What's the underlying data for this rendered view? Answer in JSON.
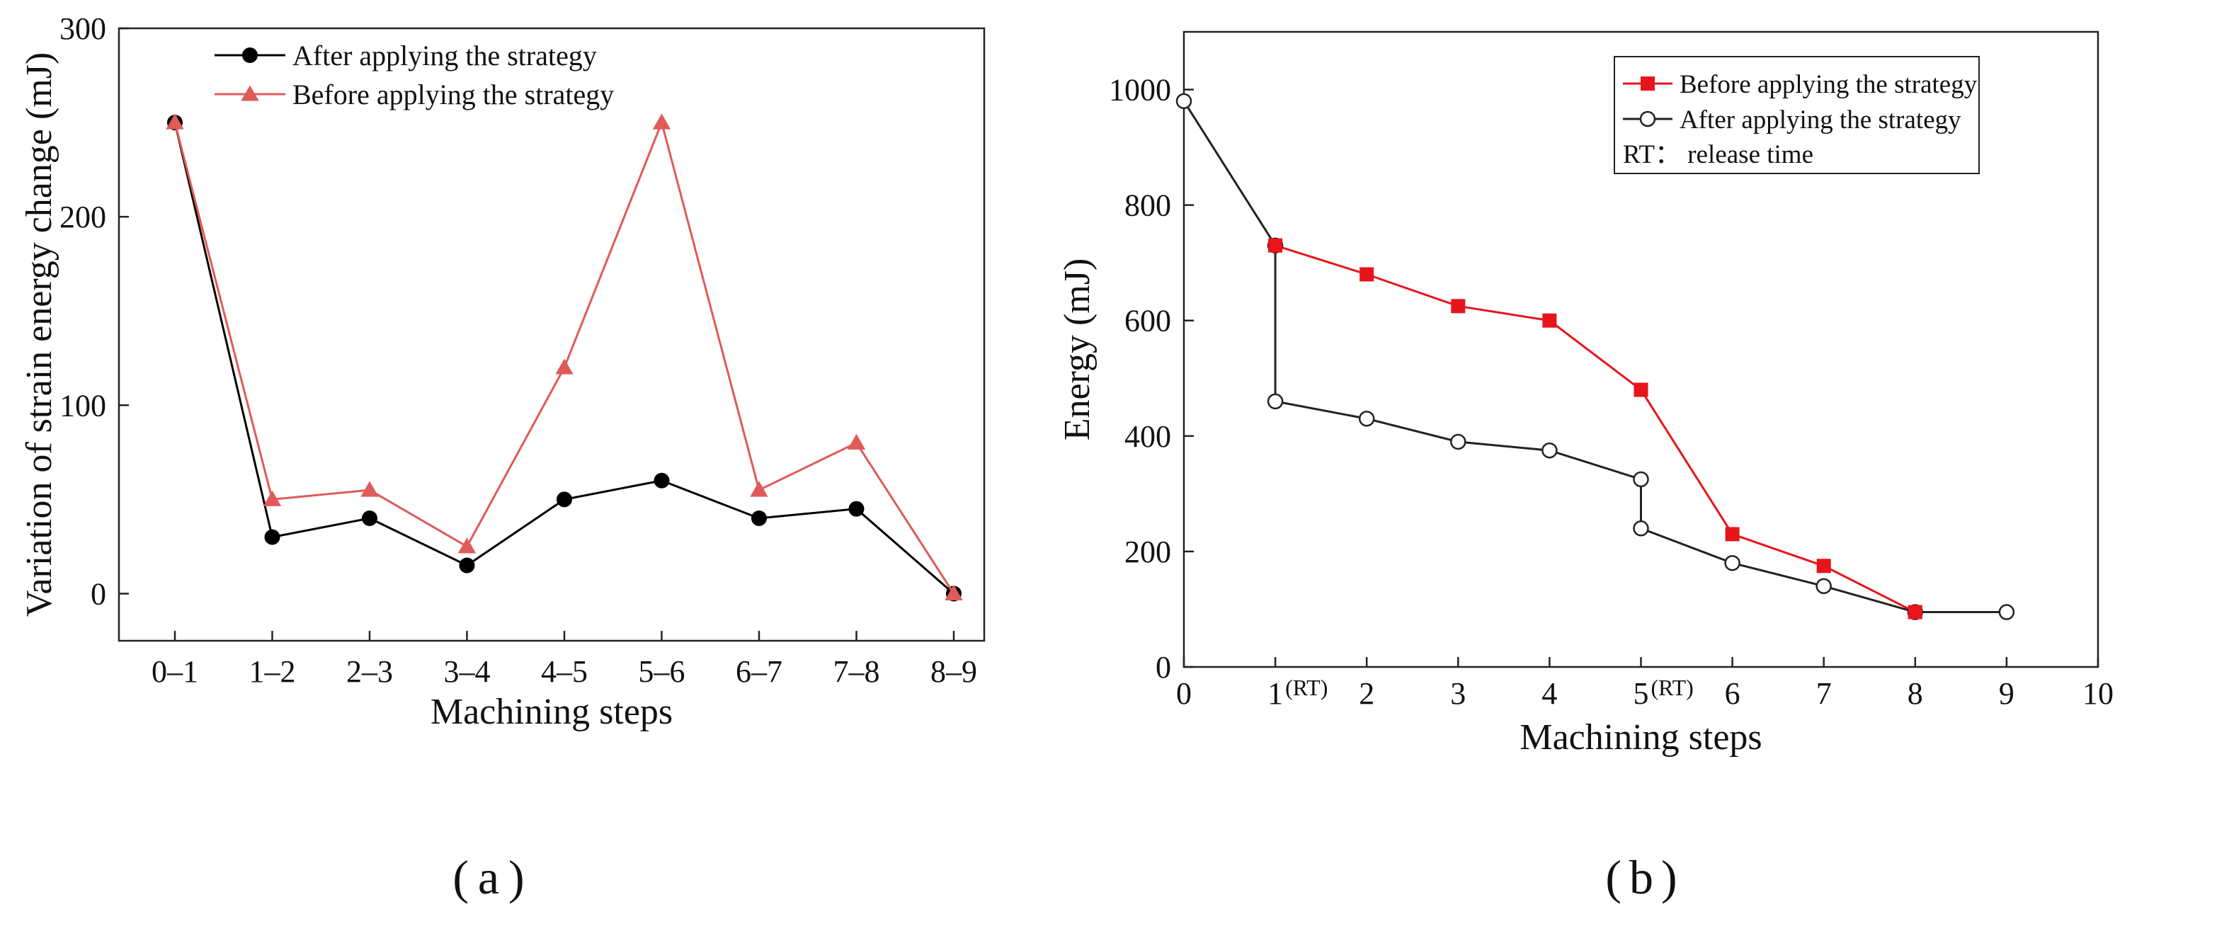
{
  "chart_data": [
    {
      "type": "line",
      "panel_label": "a",
      "xlabel": "Machining steps",
      "ylabel": "Variation of strain energy change (mJ)",
      "categories": [
        "0–1",
        "1–2",
        "2–3",
        "3–4",
        "4–5",
        "5–6",
        "6–7",
        "7–8",
        "8–9"
      ],
      "ylim": [
        -25,
        300
      ],
      "yticks": [
        0,
        100,
        200,
        300
      ],
      "legend_position": "top-center",
      "grid": false,
      "series": [
        {
          "name": "After applying the strategy",
          "color": "#000000",
          "marker": "circle",
          "values": [
            250,
            30,
            40,
            15,
            50,
            60,
            40,
            45,
            0
          ]
        },
        {
          "name": "Before applying the strategy",
          "color": "#e05a5a",
          "marker": "triangle",
          "values": [
            250,
            50,
            55,
            25,
            120,
            250,
            55,
            80,
            0
          ]
        }
      ]
    },
    {
      "type": "line",
      "panel_label": "b",
      "xlabel": "Machining steps",
      "ylabel": "Energy (mJ)",
      "xlim": [
        0,
        10
      ],
      "ylim": [
        0,
        1100
      ],
      "xticks": [
        {
          "value": 0,
          "label": "0"
        },
        {
          "value": 1,
          "label": "1"
        },
        {
          "value": 2,
          "label": "2"
        },
        {
          "value": 3,
          "label": "3"
        },
        {
          "value": 4,
          "label": "4"
        },
        {
          "value": 5,
          "label": "5"
        },
        {
          "value": 6,
          "label": "6"
        },
        {
          "value": 7,
          "label": "7"
        },
        {
          "value": 8,
          "label": "8"
        },
        {
          "value": 9,
          "label": "9"
        },
        {
          "value": 10,
          "label": "10"
        }
      ],
      "yticks": [
        0,
        200,
        400,
        600,
        800,
        1000
      ],
      "tick_annotations": [
        {
          "value": 1,
          "text": "(RT)"
        },
        {
          "value": 5,
          "text": "(RT)"
        }
      ],
      "legend_position": "top-right",
      "legend_note": "RT： release time",
      "grid": false,
      "series": [
        {
          "name": "Before applying the strategy",
          "color": "#e8141b",
          "marker": "square",
          "x": [
            1,
            2,
            3,
            4,
            5,
            6,
            7,
            8
          ],
          "y": [
            730,
            680,
            625,
            600,
            480,
            230,
            175,
            95
          ]
        },
        {
          "name": "After applying the strategy",
          "color": "#222222",
          "marker": "open-circle",
          "x": [
            0,
            1,
            1,
            2,
            3,
            4,
            5,
            5,
            6,
            7,
            8,
            9
          ],
          "y": [
            980,
            730,
            460,
            430,
            390,
            375,
            325,
            240,
            180,
            140,
            95,
            95
          ]
        }
      ]
    }
  ]
}
